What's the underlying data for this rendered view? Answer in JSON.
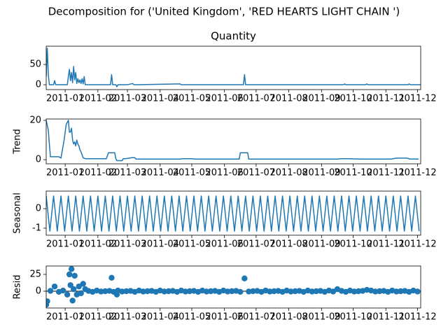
{
  "title": "Decomposition for ('United Kingdom', 'RED HEARTS LIGHT CHAIN ')",
  "chart_data": [
    {
      "type": "line",
      "title": "Quantity",
      "color": "#1f77b4",
      "x": [
        13,
        14,
        15,
        16,
        17,
        20,
        21,
        22,
        25,
        30,
        33,
        34,
        35,
        36,
        37,
        38,
        39,
        40,
        41,
        42,
        43,
        44,
        45,
        46,
        47,
        48,
        49,
        50,
        52,
        55,
        60,
        70,
        74,
        75,
        76,
        79,
        80,
        81,
        82,
        90,
        95,
        96,
        100,
        140,
        141,
        150,
        195,
        200,
        201,
        202,
        206,
        250,
        295,
        296,
        297,
        316,
        317,
        318,
        340,
        356,
        357,
        358,
        368
      ],
      "values": [
        20,
        90,
        25,
        0,
        0,
        0,
        10,
        0,
        0,
        0,
        0,
        20,
        38,
        10,
        30,
        5,
        45,
        12,
        30,
        3,
        15,
        5,
        12,
        3,
        15,
        2,
        20,
        0,
        0,
        0,
        0,
        0,
        0,
        25,
        0,
        0,
        -5,
        0,
        0,
        0,
        3,
        0,
        0,
        2,
        0,
        0,
        0,
        0,
        25,
        0,
        0,
        0,
        0,
        2,
        0,
        0,
        2,
        0,
        0,
        0,
        2,
        0,
        0
      ],
      "xlim": [
        13,
        368
      ],
      "ylim": [
        -12,
        95
      ],
      "yticks": [
        0,
        50
      ],
      "xticks": [
        {
          "value": 31,
          "label": "2011-01"
        },
        {
          "value": 62,
          "label": "2011-02"
        },
        {
          "value": 90,
          "label": "2011-03"
        },
        {
          "value": 121,
          "label": "2011-04"
        },
        {
          "value": 151,
          "label": "2011-05"
        },
        {
          "value": 182,
          "label": "2011-06"
        },
        {
          "value": 212,
          "label": "2011-07"
        },
        {
          "value": 243,
          "label": "2011-08"
        },
        {
          "value": 274,
          "label": "2011-09"
        },
        {
          "value": 304,
          "label": "2011-10"
        },
        {
          "value": 335,
          "label": "2011-11"
        },
        {
          "value": 365,
          "label": "2011-12"
        }
      ]
    },
    {
      "type": "line",
      "ylabel": "Trend",
      "color": "#1f77b4",
      "x": [
        13,
        15,
        16,
        17,
        25,
        27,
        30,
        32,
        33,
        34,
        35,
        36,
        37,
        38,
        39,
        40,
        41,
        42,
        43,
        44,
        45,
        46,
        48,
        50,
        52,
        54,
        56,
        70,
        72,
        73,
        78,
        79,
        80,
        81,
        85,
        86,
        88,
        92,
        94,
        97,
        98,
        100,
        140,
        142,
        150,
        155,
        160,
        196,
        197,
        204,
        205,
        210,
        290,
        292,
        300,
        310,
        320,
        340,
        345,
        355,
        358,
        360,
        366
      ],
      "values": [
        20,
        15,
        8,
        1.5,
        1.5,
        0.8,
        10,
        18,
        19,
        20,
        14,
        14,
        16,
        10,
        8,
        9,
        7,
        10,
        8,
        7,
        5,
        4,
        1,
        0.5,
        0.5,
        0.5,
        0.5,
        0.5,
        3.5,
        3.5,
        3.5,
        0.5,
        -0.5,
        -0.5,
        -0.5,
        0.5,
        0.5,
        0.8,
        1,
        1,
        0.3,
        0.3,
        0.3,
        0.5,
        0.5,
        0.3,
        0.3,
        0.3,
        3.5,
        3.5,
        0.3,
        0.3,
        0.3,
        0.5,
        0.5,
        0.3,
        0.3,
        0.3,
        0.8,
        0.8,
        0.3,
        0.3,
        0.3
      ],
      "xlim": [
        13,
        368
      ],
      "ylim": [
        -2.1,
        20.7
      ],
      "yticks": [
        0,
        20
      ],
      "xticks": [
        {
          "value": 31,
          "label": "2011-01"
        },
        {
          "value": 62,
          "label": "2011-02"
        },
        {
          "value": 90,
          "label": "2011-03"
        },
        {
          "value": 121,
          "label": "2011-04"
        },
        {
          "value": 151,
          "label": "2011-05"
        },
        {
          "value": 182,
          "label": "2011-06"
        },
        {
          "value": 212,
          "label": "2011-07"
        },
        {
          "value": 243,
          "label": "2011-08"
        },
        {
          "value": 274,
          "label": "2011-09"
        },
        {
          "value": 304,
          "label": "2011-10"
        },
        {
          "value": 335,
          "label": "2011-11"
        },
        {
          "value": 365,
          "label": "2011-12"
        }
      ]
    },
    {
      "type": "line",
      "ylabel": "Seasonal",
      "color": "#1f77b4",
      "x": [
        13,
        16.5,
        20,
        23.5,
        27,
        30.5,
        34,
        37.5,
        41,
        44.5,
        48,
        51.5,
        55,
        58.5,
        62,
        65.5,
        69,
        72.5,
        76,
        79.5,
        83,
        86.5,
        90,
        93.5,
        97,
        100.5,
        104,
        107.5,
        111,
        114.5,
        118,
        121.5,
        125,
        128.5,
        132,
        135.5,
        139,
        142.5,
        146,
        149.5,
        153,
        156.5,
        160,
        163.5,
        167,
        170.5,
        174,
        177.5,
        181,
        184.5,
        188,
        191.5,
        195,
        198.5,
        202,
        205.5,
        209,
        212.5,
        216,
        219.5,
        223,
        226.5,
        230,
        233.5,
        237,
        240.5,
        244,
        247.5,
        251,
        254.5,
        258,
        261.5,
        265,
        268.5,
        272,
        275.5,
        279,
        282.5,
        286,
        289.5,
        293,
        296.5,
        300,
        303.5,
        307,
        310.5,
        314,
        317.5,
        321,
        324.5,
        328,
        331.5,
        335,
        338.5,
        342,
        345.5,
        349,
        352.5,
        356,
        359.5,
        363,
        366.5
      ],
      "values": [
        0.65,
        -1.15,
        0.65,
        -1.15,
        0.65,
        -1.15,
        0.65,
        -1.15,
        0.65,
        -1.15,
        0.65,
        -1.15,
        0.65,
        -1.15,
        0.65,
        -1.15,
        0.65,
        -1.15,
        0.65,
        -1.15,
        0.65,
        -1.15,
        0.65,
        -1.15,
        0.65,
        -1.15,
        0.65,
        -1.15,
        0.65,
        -1.15,
        0.65,
        -1.15,
        0.65,
        -1.15,
        0.65,
        -1.15,
        0.65,
        -1.15,
        0.65,
        -1.15,
        0.65,
        -1.15,
        0.65,
        -1.15,
        0.65,
        -1.15,
        0.65,
        -1.15,
        0.65,
        -1.15,
        0.65,
        -1.15,
        0.65,
        -1.15,
        0.65,
        -1.15,
        0.65,
        -1.15,
        0.65,
        -1.15,
        0.65,
        -1.15,
        0.65,
        -1.15,
        0.65,
        -1.15,
        0.65,
        -1.15,
        0.65,
        -1.15,
        0.65,
        -1.15,
        0.65,
        -1.15,
        0.65,
        -1.15,
        0.65,
        -1.15,
        0.65,
        -1.15,
        0.65,
        -1.15,
        0.65,
        -1.15,
        0.65,
        -1.15,
        0.65,
        -1.15,
        0.65,
        -1.15,
        0.65,
        -1.15,
        0.65,
        -1.15,
        0.65,
        -1.15,
        0.65,
        -1.15,
        0.65,
        -1.15,
        0.65,
        -1.15
      ],
      "xlim": [
        13,
        368
      ],
      "ylim": [
        -1.36,
        0.9
      ],
      "yticks": [
        -1,
        0
      ],
      "xticks": [
        {
          "value": 31,
          "label": "2011-01"
        },
        {
          "value": 62,
          "label": "2011-02"
        },
        {
          "value": 90,
          "label": "2011-03"
        },
        {
          "value": 121,
          "label": "2011-04"
        },
        {
          "value": 151,
          "label": "2011-05"
        },
        {
          "value": 182,
          "label": "2011-06"
        },
        {
          "value": 212,
          "label": "2011-07"
        },
        {
          "value": 243,
          "label": "2011-08"
        },
        {
          "value": 274,
          "label": "2011-09"
        },
        {
          "value": 304,
          "label": "2011-10"
        },
        {
          "value": 335,
          "label": "2011-11"
        },
        {
          "value": 365,
          "label": "2011-12"
        }
      ]
    },
    {
      "type": "scatter",
      "ylabel": "Resid",
      "color": "#1f77b4",
      "baseline": 0,
      "x": [
        13,
        14,
        17,
        21,
        25,
        29,
        33,
        35,
        36,
        37,
        38,
        39,
        40,
        42,
        44,
        46,
        48,
        50,
        53,
        57,
        61,
        65,
        69,
        73,
        75,
        77,
        80,
        81,
        85,
        89,
        93,
        97,
        101,
        105,
        109,
        113,
        117,
        121,
        125,
        129,
        133,
        137,
        141,
        145,
        149,
        153,
        157,
        161,
        165,
        169,
        173,
        177,
        181,
        185,
        189,
        193,
        197,
        201,
        205,
        209,
        213,
        217,
        221,
        225,
        229,
        233,
        237,
        241,
        245,
        249,
        253,
        257,
        261,
        265,
        269,
        273,
        277,
        281,
        285,
        289,
        293,
        297,
        301,
        305,
        309,
        313,
        317,
        321,
        325,
        329,
        333,
        337,
        341,
        345,
        349,
        353,
        357,
        361,
        365
      ],
      "values": [
        -20,
        -15,
        0.5,
        7,
        -1,
        1,
        -5,
        25,
        9,
        33,
        -14,
        3,
        23,
        -5,
        7,
        -3,
        11,
        3,
        0.5,
        -1,
        1,
        -0.5,
        0,
        0.5,
        20,
        -1,
        -5,
        1,
        -0.5,
        0,
        0.5,
        -1,
        1,
        -0.5,
        0,
        0.5,
        -1,
        1,
        -0.5,
        0,
        0.5,
        -1,
        1,
        -0.5,
        0,
        0.5,
        -1,
        1,
        -0.5,
        0,
        0.5,
        -1,
        1,
        -0.5,
        0,
        0.5,
        -1,
        19,
        -0.5,
        0,
        0.5,
        -1,
        1,
        -0.5,
        0,
        0.5,
        -1,
        1,
        -0.5,
        0,
        0.5,
        -1,
        1,
        -0.5,
        0,
        0.5,
        -1,
        1,
        -0.5,
        3,
        0.5,
        -1,
        1,
        -0.5,
        0,
        0.5,
        2,
        1,
        -0.5,
        0,
        0.5,
        -1,
        1,
        -0.5,
        0,
        0.5,
        -1,
        1,
        -0.5
      ],
      "xlim": [
        13,
        368
      ],
      "ylim": [
        -25,
        37.5
      ],
      "yticks": [
        0,
        25
      ],
      "xticks": [
        {
          "value": 31,
          "label": "2011-01"
        },
        {
          "value": 62,
          "label": "2011-02"
        },
        {
          "value": 90,
          "label": "2011-03"
        },
        {
          "value": 121,
          "label": "2011-04"
        },
        {
          "value": 151,
          "label": "2011-05"
        },
        {
          "value": 182,
          "label": "2011-06"
        },
        {
          "value": 212,
          "label": "2011-07"
        },
        {
          "value": 243,
          "label": "2011-08"
        },
        {
          "value": 274,
          "label": "2011-09"
        },
        {
          "value": 304,
          "label": "2011-10"
        },
        {
          "value": 335,
          "label": "2011-11"
        },
        {
          "value": 365,
          "label": "2011-12"
        }
      ]
    }
  ]
}
